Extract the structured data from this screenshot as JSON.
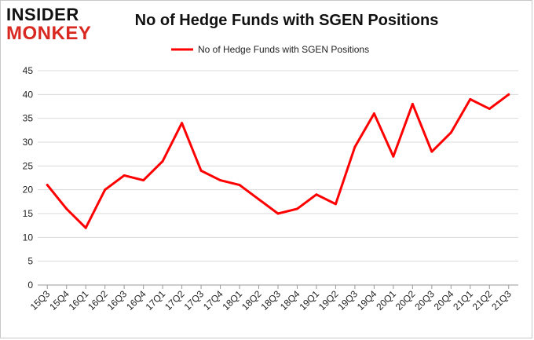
{
  "logo": {
    "line1": "INSIDER",
    "line2": "MONKEY"
  },
  "chart_data": {
    "type": "line",
    "title": "No of Hedge Funds with SGEN Positions",
    "xlabel": "",
    "ylabel": "",
    "categories": [
      "15Q3",
      "15Q4",
      "16Q1",
      "16Q2",
      "16Q3",
      "16Q4",
      "17Q1",
      "17Q2",
      "17Q3",
      "17Q4",
      "18Q1",
      "18Q2",
      "18Q3",
      "18Q4",
      "19Q1",
      "19Q2",
      "19Q3",
      "19Q4",
      "20Q1",
      "20Q2",
      "20Q3",
      "20Q4",
      "21Q1",
      "21Q2",
      "21Q3"
    ],
    "series": [
      {
        "name": "No of Hedge Funds with SGEN Positions",
        "color": "#ff0000",
        "values": [
          21,
          16,
          12,
          20,
          23,
          22,
          26,
          34,
          24,
          22,
          21,
          18,
          15,
          16,
          19,
          17,
          29,
          36,
          27,
          38,
          28,
          32,
          39,
          37,
          40
        ]
      }
    ],
    "ylim": [
      0,
      45
    ],
    "yticks": [
      0,
      5,
      10,
      15,
      20,
      25,
      30,
      35,
      40,
      45
    ],
    "grid": true,
    "legend_position": "top-center"
  }
}
